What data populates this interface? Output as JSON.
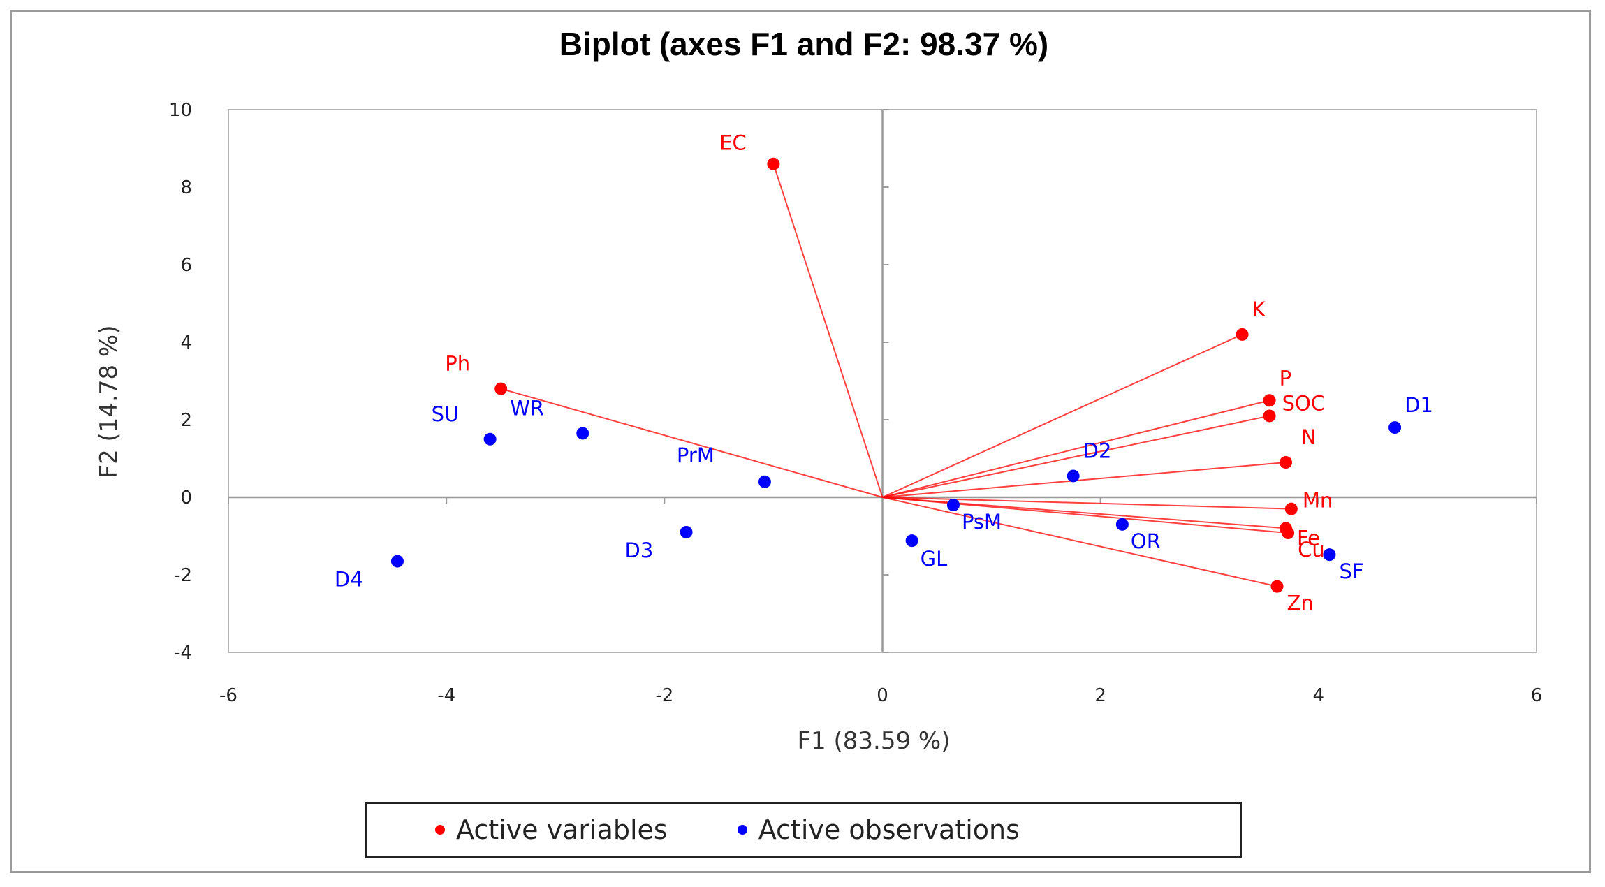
{
  "chart_data": {
    "type": "scatter",
    "subtype": "biplot",
    "title": "Biplot (axes F1 and F2: 98.37 %)",
    "xlabel": "F1 (83.59 %)",
    "ylabel": "F2 (14.78 %)",
    "xlim": [
      -6,
      6
    ],
    "ylim": [
      -4,
      10
    ],
    "xticks": [
      -6,
      -4,
      -2,
      0,
      2,
      4,
      6
    ],
    "yticks": [
      -4,
      -2,
      0,
      2,
      4,
      6,
      8,
      10
    ],
    "xtick_labels": [
      "-6",
      "-4",
      "-2",
      "0",
      "2",
      "4",
      "6"
    ],
    "ytick_labels": [
      "-4",
      "-2",
      "0",
      "2",
      "4",
      "6",
      "8",
      "10"
    ],
    "series": [
      {
        "name": "Active variables",
        "color": "#ff0000",
        "draw_vectors_from_origin": true,
        "points": [
          {
            "label": "EC",
            "x": -1.0,
            "y": 8.6
          },
          {
            "label": "K",
            "x": 3.3,
            "y": 4.2
          },
          {
            "label": "P",
            "x": 3.55,
            "y": 2.5
          },
          {
            "label": "SOC",
            "x": 3.55,
            "y": 2.1
          },
          {
            "label": "Ph",
            "x": -3.5,
            "y": 2.8
          },
          {
            "label": "N",
            "x": 3.7,
            "y": 0.9
          },
          {
            "label": "Mn",
            "x": 3.75,
            "y": -0.3
          },
          {
            "label": "Fe",
            "x": 3.7,
            "y": -0.8
          },
          {
            "label": "Cu",
            "x": 3.72,
            "y": -0.92
          },
          {
            "label": "Zn",
            "x": 3.62,
            "y": -2.3
          }
        ]
      },
      {
        "name": "Active observations",
        "color": "#0000ff",
        "draw_vectors_from_origin": false,
        "points": [
          {
            "label": "D1",
            "x": 4.7,
            "y": 1.8
          },
          {
            "label": "D2",
            "x": 1.75,
            "y": 0.55
          },
          {
            "label": "PrM",
            "x": -1.08,
            "y": 0.4
          },
          {
            "label": "SU",
            "x": -3.6,
            "y": 1.5
          },
          {
            "label": "WR",
            "x": -2.75,
            "y": 1.65
          },
          {
            "label": "PsM",
            "x": 0.65,
            "y": -0.2
          },
          {
            "label": "OR",
            "x": 2.2,
            "y": -0.7
          },
          {
            "label": "GL",
            "x": 0.27,
            "y": -1.12
          },
          {
            "label": "D3",
            "x": -1.8,
            "y": -0.9
          },
          {
            "label": "D4",
            "x": -4.45,
            "y": -1.65
          },
          {
            "label": "SF",
            "x": 4.1,
            "y": -1.48
          }
        ]
      }
    ],
    "legend": {
      "position": "bottom",
      "entries": [
        "Active variables",
        "Active observations"
      ]
    }
  }
}
